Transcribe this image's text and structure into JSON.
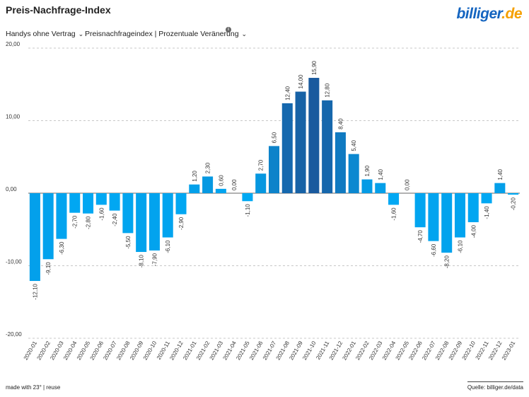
{
  "header": {
    "title": "Preis-Nachfrage-Index",
    "logo_main": "billiger",
    "logo_tld": ".de"
  },
  "filters": {
    "category": "Handys ohne Vertrag",
    "metric": "Preisnachfrageindex | Prozentuale Veränerung",
    "chevron_icon": "chevron-down-icon",
    "info_icon": "info-icon"
  },
  "footer": {
    "made_with": "made with 23° | reuse",
    "source": "Quelle: billiger.de/data"
  },
  "chart_data": {
    "type": "bar",
    "title": "Preis-Nachfrage-Index",
    "xlabel": "",
    "ylabel": "",
    "ylim": [
      -20,
      20
    ],
    "yticks": [
      20,
      10,
      0,
      -10,
      -20
    ],
    "ytick_labels": [
      "20,00",
      "10,00",
      "0,00",
      "-10,00",
      "-20,00"
    ],
    "grid": true,
    "colors": {
      "low": "#00aaf5",
      "high": "#1a5a9e"
    },
    "categories": [
      "2020-01",
      "2020-02",
      "2020-03",
      "2020-04",
      "2020-05",
      "2020-06",
      "2020-07",
      "2020-08",
      "2020-09",
      "2020-10",
      "2020-11",
      "2020-12",
      "2021-01",
      "2021-02",
      "2021-03",
      "2021-04",
      "2021-05",
      "2021-06",
      "2021-07",
      "2021-08",
      "2021-09",
      "2021-10",
      "2021-11",
      "2021-12",
      "2022-01",
      "2022-02",
      "2022-03",
      "2022-04",
      "2022-05",
      "2022-06",
      "2022-07",
      "2022-08",
      "2022-09",
      "2022-10",
      "2022-11",
      "2022-12",
      "2023-01"
    ],
    "values": [
      -12.1,
      -9.1,
      -6.3,
      -2.7,
      -2.8,
      -1.6,
      -2.4,
      -5.5,
      -8.1,
      -7.9,
      -6.1,
      -2.9,
      1.2,
      2.3,
      0.6,
      0.0,
      -1.1,
      2.7,
      6.5,
      12.4,
      14.0,
      15.9,
      12.8,
      8.4,
      5.4,
      1.9,
      1.4,
      -1.6,
      0.0,
      -4.7,
      -6.6,
      -8.2,
      -6.1,
      -4.0,
      -1.4,
      1.4,
      -0.2
    ],
    "value_labels": [
      "-12,10",
      "-9,10",
      "-6,30",
      "-2,70",
      "-2,80",
      "-1,60",
      "-2,40",
      "-5,50",
      "-8,10",
      "-7,90",
      "-6,10",
      "-2,90",
      "1,20",
      "2,30",
      "0,60",
      "0,00",
      "-1,10",
      "2,70",
      "6,50",
      "12,40",
      "14,00",
      "15,90",
      "12,80",
      "8,40",
      "5,40",
      "1,90",
      "1,40",
      "-1,60",
      "0,00",
      "-4,70",
      "-6,60",
      "-8,20",
      "-6,10",
      "-4,00",
      "-1,40",
      "1,40",
      "-0,20"
    ]
  }
}
